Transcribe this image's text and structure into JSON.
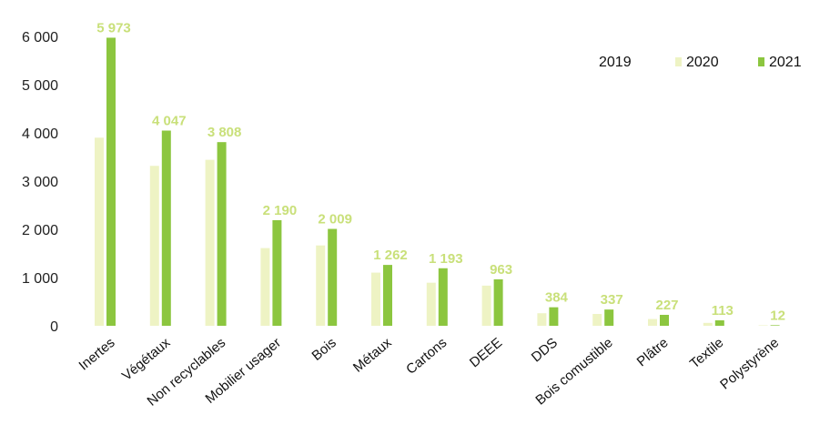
{
  "chart_data": {
    "type": "bar",
    "categories": [
      "Inertes",
      "Végétaux",
      "Non recyclables",
      "Mobilier usager",
      "Bois",
      "Métaux",
      "Cartons",
      "DEEE",
      "DDS",
      "Bois comustible",
      "Plâtre",
      "Textile",
      "Polystyrène"
    ],
    "series": [
      {
        "name": "2019",
        "values": [
          null,
          null,
          null,
          null,
          null,
          null,
          null,
          null,
          null,
          null,
          null,
          null,
          null
        ]
      },
      {
        "name": "2020",
        "values": [
          3900,
          3316,
          3441,
          1611,
          1666,
          1102,
          893,
          833,
          260,
          245,
          140,
          60,
          10
        ]
      },
      {
        "name": "2021",
        "values": [
          5973,
          4047,
          3808,
          2190,
          2009,
          1262,
          1193,
          963,
          384,
          337,
          227,
          113,
          12
        ]
      }
    ],
    "data_labels_2021": [
      "5 973",
      "4 047",
      "3 808",
      "2 190",
      "2 009",
      "1 262",
      "1 193",
      "963",
      "384",
      "337",
      "227",
      "113",
      "12"
    ],
    "y_ticks": [
      "0",
      "1 000",
      "2 000",
      "3 000",
      "4 000",
      "5 000",
      "6 000"
    ],
    "ylim": [
      0,
      6000
    ],
    "legend": [
      "2019",
      "2020",
      "2021"
    ],
    "legend_position": "top-right",
    "grid": false,
    "colors": {
      "2019": "#ffffff",
      "2020": "#eef3c4",
      "2021": "#8cc63f",
      "label_2021": "#c9e07a"
    }
  }
}
